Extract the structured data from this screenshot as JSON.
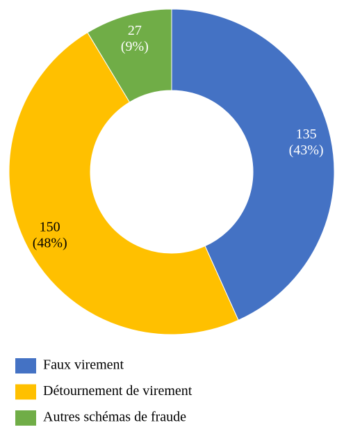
{
  "chart_data": {
    "type": "donut",
    "categories": [
      "Faux virement",
      "Détournement de virement",
      "Autres schémas de fraude"
    ],
    "values": [
      135,
      150,
      27
    ],
    "value_labels": [
      "(43%)",
      "(48%)",
      "(9%)"
    ],
    "colors": [
      "#4472c4",
      "#ffc000",
      "#70ad47"
    ],
    "label_colors": [
      "#ffffff",
      "#000000",
      "#ffffff"
    ],
    "legend": "bottom"
  }
}
